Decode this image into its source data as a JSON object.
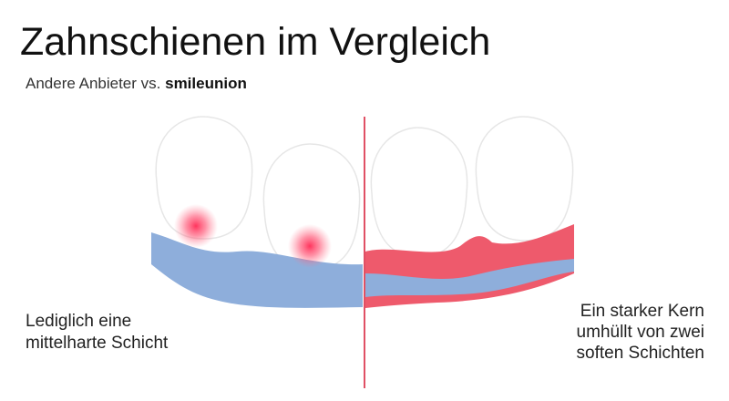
{
  "header": {
    "title": "Zahnschienen im Vergleich",
    "subtitle": "Andere Anbieter vs.",
    "brand": "smileunion"
  },
  "left": {
    "caption": [
      "Lediglich eine",
      "mittelharte Schicht"
    ]
  },
  "right": {
    "caption": [
      "Ein starker Kern",
      "umhüllt von zwei",
      "soften Schichten"
    ]
  }
}
